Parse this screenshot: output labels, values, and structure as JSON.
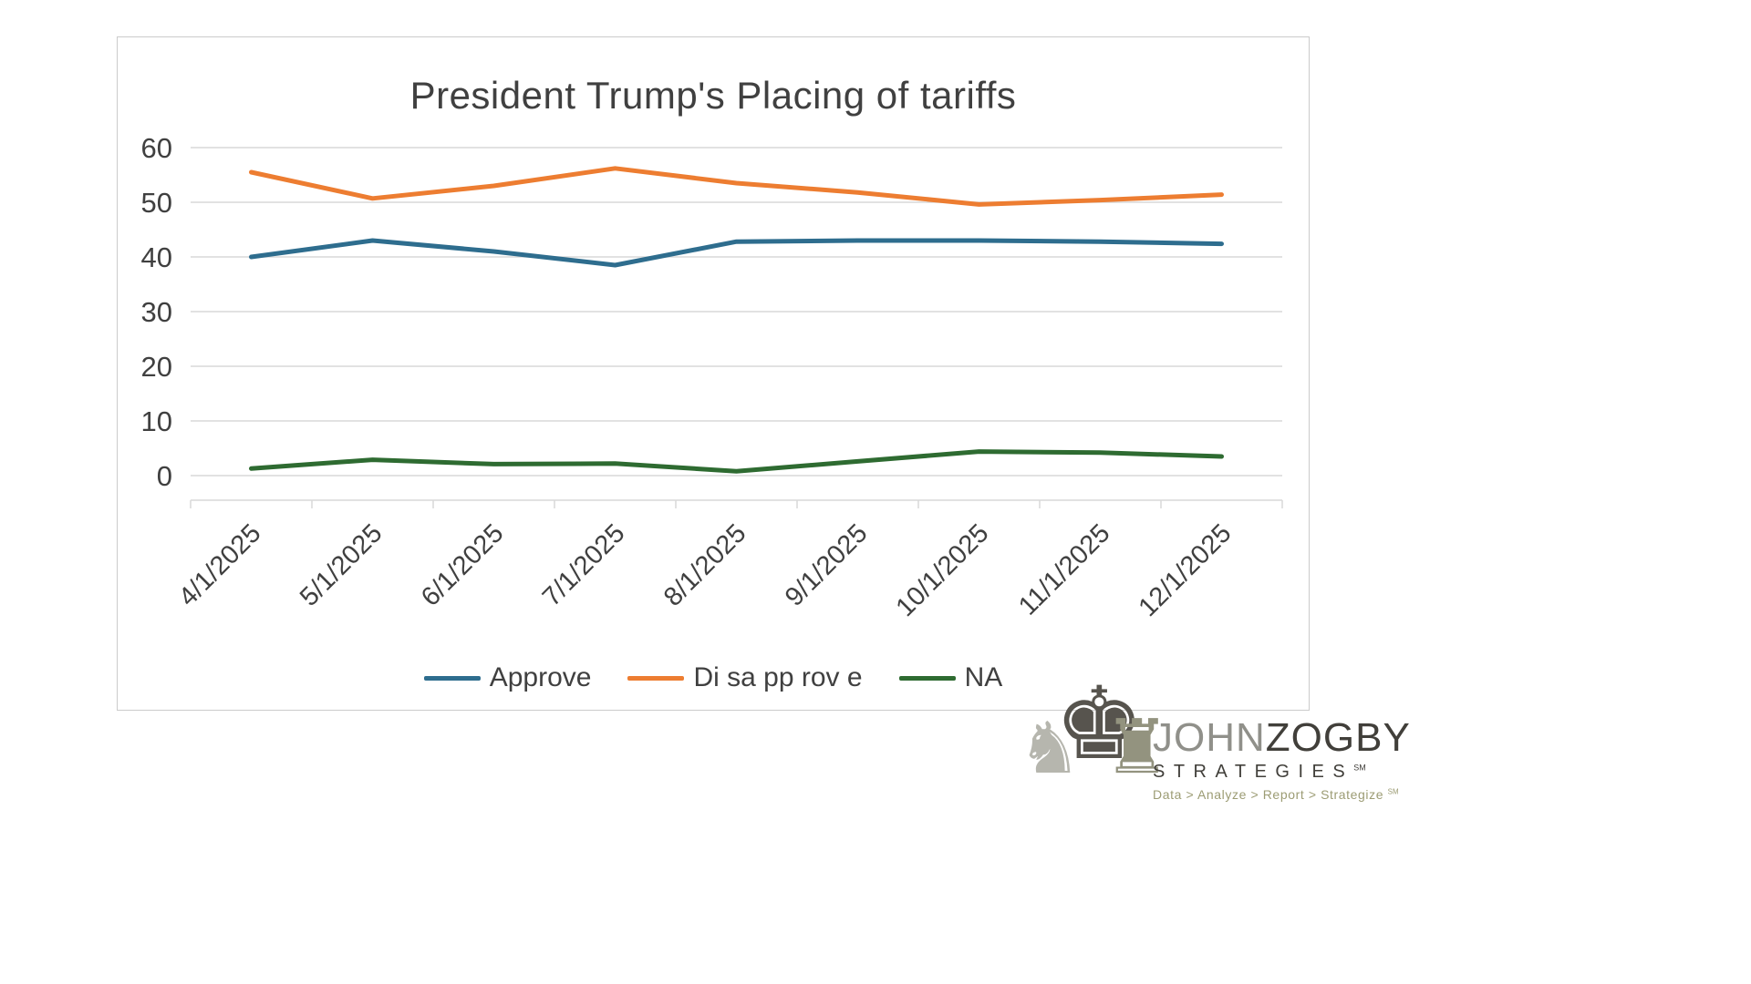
{
  "chart_data": {
    "type": "line",
    "title": "President Trump's Placing of tariffs",
    "categories": [
      "4/1/2025",
      "5/1/2025",
      "6/1/2025",
      "7/1/2025",
      "8/1/2025",
      "9/1/2025",
      "10/1/2025",
      "11/1/2025",
      "12/1/2025"
    ],
    "series": [
      {
        "name": "Approve",
        "color": "#2E6D8E",
        "values": [
          40,
          43,
          41,
          38.5,
          42.8,
          43,
          43,
          42.8,
          42.4
        ]
      },
      {
        "name": "Di sa pp rov e",
        "color": "#ED7D31",
        "values": [
          55.5,
          50.7,
          53,
          56.2,
          53.5,
          51.8,
          49.6,
          50.4,
          51.4
        ]
      },
      {
        "name": "NA",
        "color": "#2E6B31",
        "values": [
          1.3,
          2.9,
          2.1,
          2.2,
          0.8,
          2.6,
          4.4,
          4.2,
          3.5
        ]
      }
    ],
    "ylim": [
      0,
      60
    ],
    "yticks": [
      0,
      10,
      20,
      30,
      40,
      50,
      60
    ],
    "grid": true,
    "legend_position": "bottom",
    "colors": {
      "axis_text": "#404040",
      "gridline": "#d9d9d9",
      "title_text": "#404040"
    }
  },
  "logo": {
    "knight_icon": "♞",
    "king_icon": "♚",
    "rook_icon": "♜",
    "name_part1": "JOHN",
    "name_part2": "ZOGBY",
    "subtitle": "STRATEGIES",
    "sm_mark": "SM",
    "tagline": "Data > Analyze > Report > Strategize",
    "tagline_sm": "SM"
  }
}
